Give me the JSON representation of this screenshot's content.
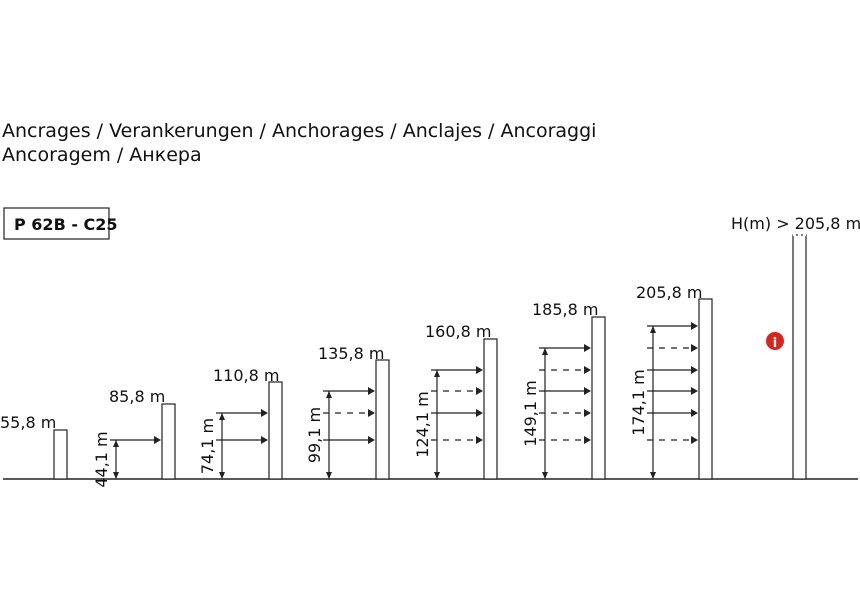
{
  "header": {
    "title_lines": [
      "Ancrages / Verankerungen / Anchorages / Anclajes / Ancoraggi",
      "Ancoragem / Анкера"
    ]
  },
  "badge": "P 62B - C25",
  "masts": [
    {
      "height": "55,8 m"
    },
    {
      "height": "85,8 m",
      "anchor_height": "44,1 m"
    },
    {
      "height": "110,8 m",
      "anchor_height": "74,1 m"
    },
    {
      "height": "135,8 m",
      "anchor_height": "99,1 m"
    },
    {
      "height": "160,8 m",
      "anchor_height": "124,1 m"
    },
    {
      "height": "185,8 m",
      "anchor_height": "149,1 m"
    },
    {
      "height": "205,8 m",
      "anchor_height": "174,1 m"
    },
    {
      "height": "H(m) > 205,8 m"
    }
  ]
}
